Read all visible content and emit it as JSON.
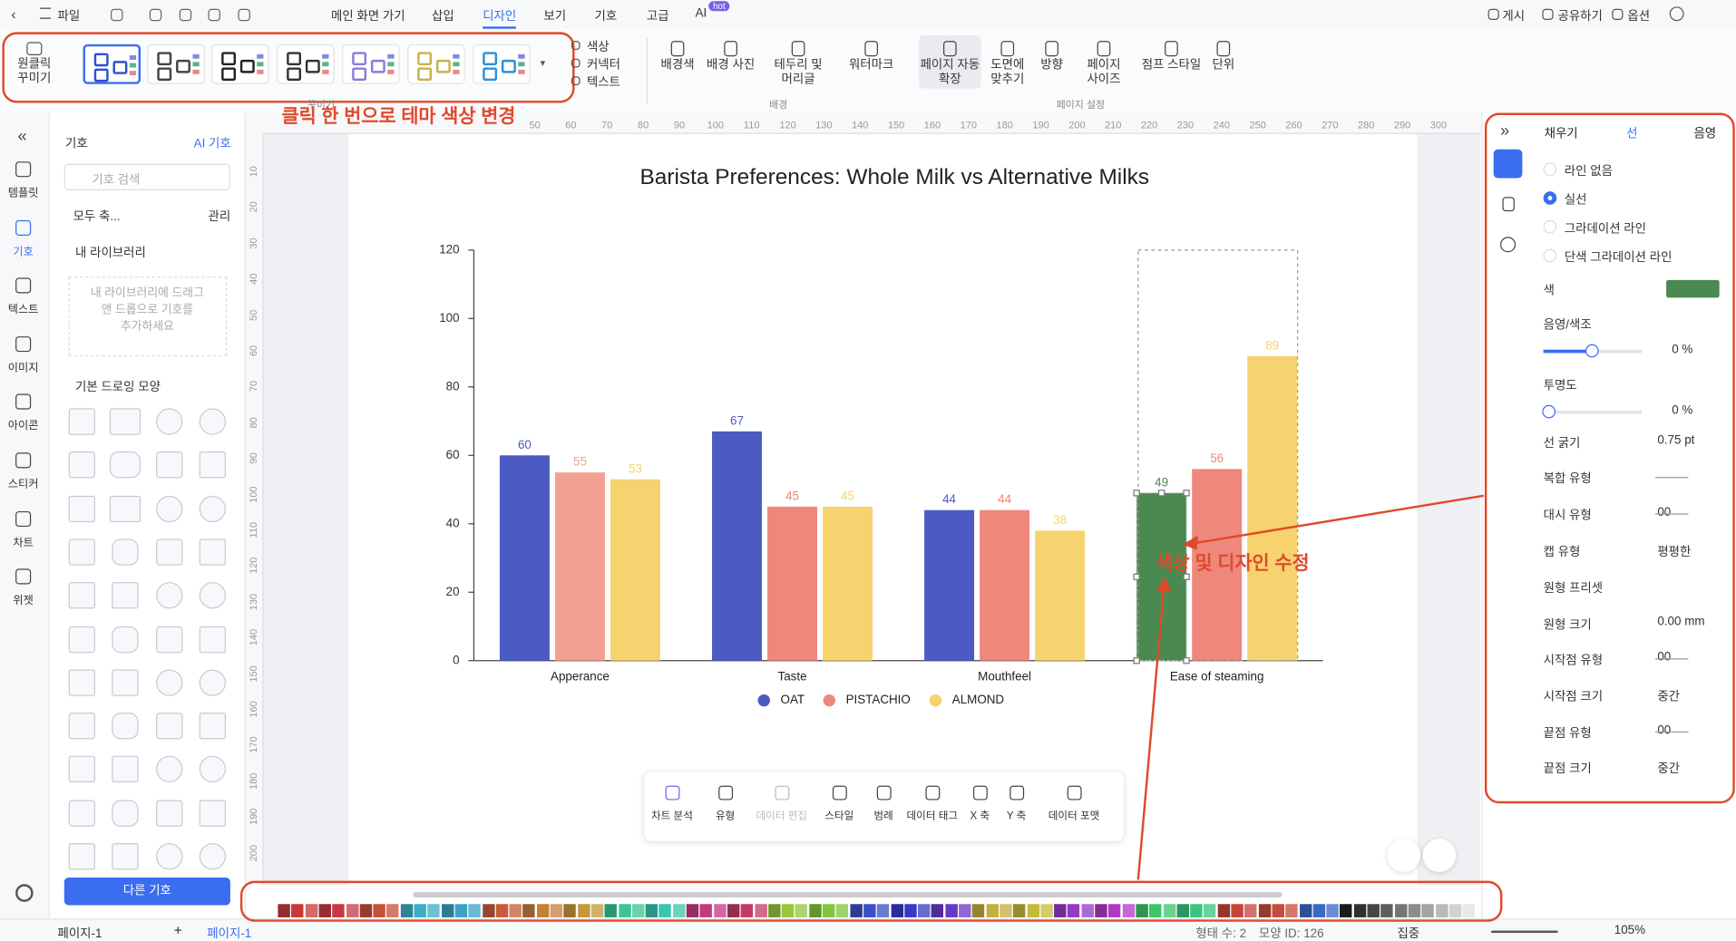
{
  "menu": {
    "file": "파일",
    "tabs": [
      "메인 화면 가기",
      "삽입",
      "디자인",
      "보기",
      "기호",
      "고급",
      "AI"
    ],
    "ai_badge": "hot",
    "right": [
      "게시",
      "공유하기",
      "옵션"
    ]
  },
  "ribbon": {
    "one_click": "원클릭 꾸미기",
    "theme_menu": [
      "색상",
      "커넥터",
      "텍스트"
    ],
    "background": [
      "배경색",
      "배경 사진",
      "테두리 및 머리글",
      "워터마크"
    ],
    "page": [
      "페이지 자동 확장",
      "도면에 맞추기",
      "방향",
      "페이지 사이즈",
      "점프 스타일",
      "단위"
    ],
    "groups": [
      "꾸미기",
      "배경",
      "페이지 설정"
    ]
  },
  "rail": [
    "템플릿",
    "기호",
    "텍스트",
    "이미지",
    "아이콘",
    "스티커",
    "차트",
    "위젯"
  ],
  "library": {
    "title": "기호",
    "ai": "AI 기호",
    "search": "기호 검색",
    "collapse": "모두 축...",
    "manage": "관리",
    "my_library": "내 라이브러리",
    "my_library_hint": "내 라이브러리에 드래그 앤 드롭으로 기호를 추가하세요",
    "basic_shapes": "기본 드로잉 모양",
    "more": "다른 기호"
  },
  "ruler": {
    "top": [
      50,
      60,
      70,
      80,
      90,
      100,
      110,
      120,
      130,
      140,
      150,
      160,
      170,
      180,
      190,
      200,
      210,
      220,
      230,
      240,
      250,
      260,
      270,
      280,
      290,
      300
    ],
    "left": [
      10,
      20,
      30,
      40,
      50,
      60,
      70,
      80,
      90,
      100,
      110,
      120,
      130,
      140,
      150,
      160,
      170,
      180,
      190,
      200
    ]
  },
  "annotations": {
    "theme": "클릭 한 번으로 테마 색상 변경",
    "edit": "색상 및 디자인 수정"
  },
  "chart_data": {
    "type": "bar",
    "title": "Barista Preferences: Whole Milk vs Alternative Milks",
    "categories": [
      "Apperance",
      "Taste",
      "Mouthfeel",
      "Ease of steaming"
    ],
    "series": [
      {
        "name": "OAT",
        "color": "#4b5bc3",
        "point_colors": [
          "#4b5bc3",
          "#4b5bc3",
          "#4b5bc3",
          "#4a8a50"
        ],
        "values": [
          60,
          67,
          44,
          49
        ]
      },
      {
        "name": "PISTACHIO",
        "color": "#ee877c",
        "point_colors": [
          "#f2a092",
          "#ee877c",
          "#ee877c",
          "#ee877c"
        ],
        "values": [
          55,
          45,
          44,
          56
        ]
      },
      {
        "name": "ALMOND",
        "color": "#f6d36e",
        "values": [
          53,
          45,
          38,
          89
        ]
      }
    ],
    "ylim": [
      0,
      120
    ],
    "yticks": [
      0,
      20,
      40,
      60,
      80,
      100,
      120
    ],
    "grid": false,
    "legend": "bottom"
  },
  "chart_toolbar": [
    "차트 분석",
    "유형",
    "데이터 편집",
    "스타일",
    "범례",
    "데이터 태그",
    "X 축",
    "Y 축",
    "데이터 포맷"
  ],
  "format_panel": {
    "tabs": [
      "채우기",
      "선",
      "음영"
    ],
    "line_options": [
      "라인 없음",
      "실선",
      "그라데이션 라인",
      "단색 그라데이션 라인"
    ],
    "rows": [
      [
        "색",
        ""
      ],
      [
        "음영/색조",
        "0 %"
      ],
      [
        "투명도",
        "0 %"
      ],
      [
        "선 굵기",
        "0.75 pt"
      ],
      [
        "복합 유형",
        ""
      ],
      [
        "대시 유형",
        "00"
      ],
      [
        "캡 유형",
        "평평한"
      ],
      [
        "원형 프리셋",
        ""
      ],
      [
        "원형 크기",
        "0.00 mm"
      ],
      [
        "시작점 유형",
        "00"
      ],
      [
        "시작점 크기",
        "중간"
      ],
      [
        "끝점 유형",
        "00"
      ],
      [
        "끝점 크기",
        "중간"
      ]
    ]
  },
  "status": {
    "page": "페이지-1",
    "add": "+",
    "tab": "페이지-1",
    "shapes": "형태 수: 2",
    "shape_id": "모양 ID: 126",
    "focus": "집중",
    "zoom": "105%"
  }
}
